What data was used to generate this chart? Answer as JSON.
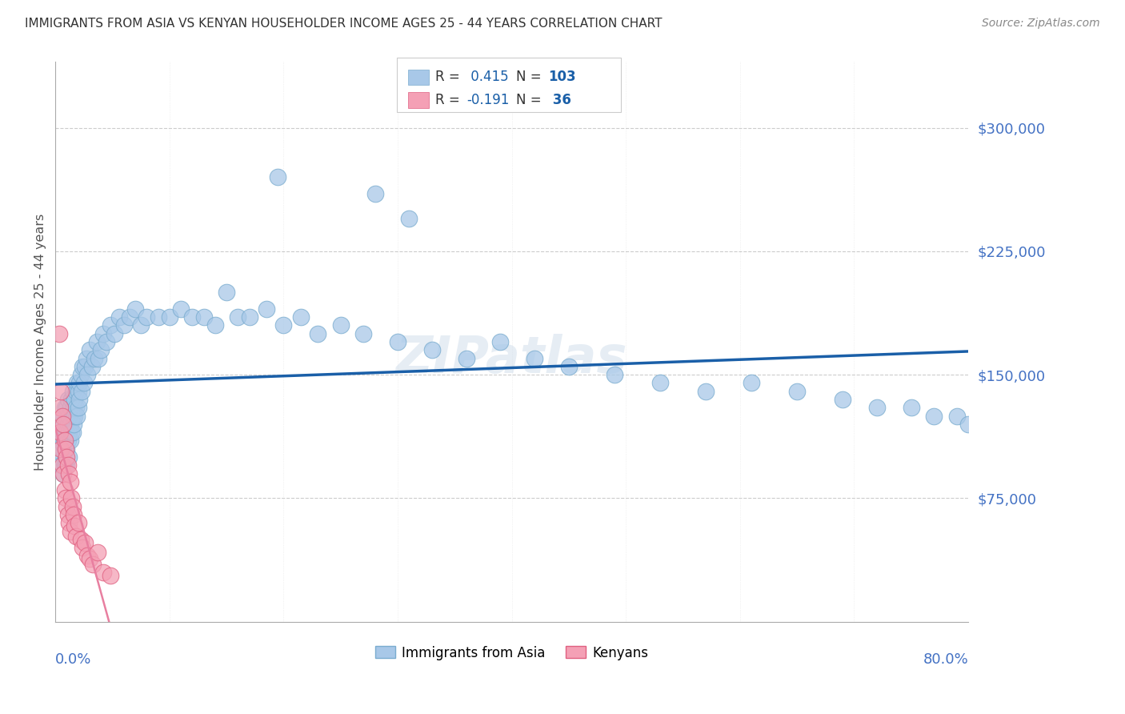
{
  "title": "IMMIGRANTS FROM ASIA VS KENYAN HOUSEHOLDER INCOME AGES 25 - 44 YEARS CORRELATION CHART",
  "source": "Source: ZipAtlas.com",
  "ylabel": "Householder Income Ages 25 - 44 years",
  "watermark": "ZIPatlas",
  "legend1_label": "Immigrants from Asia",
  "legend2_label": "Kenyans",
  "R_asia": 0.415,
  "N_asia": 103,
  "R_kenya": -0.191,
  "N_kenya": 36,
  "xlim": [
    0.0,
    0.8
  ],
  "ylim": [
    0,
    340000
  ],
  "yticks": [
    0,
    75000,
    150000,
    225000,
    300000
  ],
  "xticks": [
    0.0,
    0.1,
    0.2,
    0.3,
    0.4,
    0.5,
    0.6,
    0.7,
    0.8
  ],
  "background_color": "#ffffff",
  "grid_color": "#cccccc",
  "blue_dot_color": "#a8c8e8",
  "blue_dot_edge": "#7aaccf",
  "pink_dot_color": "#f4a0b5",
  "pink_dot_edge": "#e06080",
  "blue_line_color": "#1a5fa8",
  "pink_line_color": "#e87fa0",
  "title_color": "#333333",
  "axis_label_color": "#555555",
  "yaxis_right_color": "#4472c4",
  "xaxis_color": "#4472c4",
  "asia_x": [
    0.003,
    0.004,
    0.005,
    0.005,
    0.006,
    0.006,
    0.007,
    0.007,
    0.007,
    0.008,
    0.008,
    0.008,
    0.009,
    0.009,
    0.009,
    0.01,
    0.01,
    0.01,
    0.01,
    0.011,
    0.011,
    0.011,
    0.012,
    0.012,
    0.012,
    0.013,
    0.013,
    0.013,
    0.014,
    0.014,
    0.015,
    0.015,
    0.015,
    0.016,
    0.016,
    0.017,
    0.017,
    0.018,
    0.018,
    0.019,
    0.019,
    0.02,
    0.02,
    0.021,
    0.021,
    0.022,
    0.023,
    0.024,
    0.025,
    0.026,
    0.027,
    0.028,
    0.03,
    0.032,
    0.034,
    0.036,
    0.038,
    0.04,
    0.042,
    0.045,
    0.048,
    0.052,
    0.056,
    0.06,
    0.065,
    0.07,
    0.075,
    0.08,
    0.09,
    0.1,
    0.11,
    0.12,
    0.13,
    0.14,
    0.15,
    0.16,
    0.17,
    0.185,
    0.2,
    0.215,
    0.23,
    0.25,
    0.27,
    0.3,
    0.33,
    0.36,
    0.39,
    0.42,
    0.45,
    0.49,
    0.53,
    0.57,
    0.61,
    0.65,
    0.69,
    0.72,
    0.75,
    0.77,
    0.79,
    0.8,
    0.195,
    0.28,
    0.31
  ],
  "asia_y": [
    100000,
    110000,
    95000,
    120000,
    105000,
    115000,
    90000,
    125000,
    108000,
    95000,
    115000,
    130000,
    100000,
    120000,
    110000,
    95000,
    115000,
    130000,
    105000,
    120000,
    110000,
    135000,
    100000,
    125000,
    115000,
    110000,
    130000,
    120000,
    115000,
    135000,
    125000,
    115000,
    140000,
    130000,
    120000,
    135000,
    125000,
    140000,
    130000,
    145000,
    125000,
    140000,
    130000,
    145000,
    135000,
    150000,
    140000,
    155000,
    145000,
    155000,
    160000,
    150000,
    165000,
    155000,
    160000,
    170000,
    160000,
    165000,
    175000,
    170000,
    180000,
    175000,
    185000,
    180000,
    185000,
    190000,
    180000,
    185000,
    185000,
    185000,
    190000,
    185000,
    185000,
    180000,
    200000,
    185000,
    185000,
    190000,
    180000,
    185000,
    175000,
    180000,
    175000,
    170000,
    165000,
    160000,
    170000,
    160000,
    155000,
    150000,
    145000,
    140000,
    145000,
    140000,
    135000,
    130000,
    130000,
    125000,
    125000,
    120000,
    270000,
    260000,
    245000
  ],
  "kenya_x": [
    0.003,
    0.004,
    0.004,
    0.005,
    0.005,
    0.006,
    0.006,
    0.007,
    0.007,
    0.008,
    0.008,
    0.009,
    0.009,
    0.01,
    0.01,
    0.011,
    0.011,
    0.012,
    0.012,
    0.013,
    0.013,
    0.014,
    0.015,
    0.016,
    0.017,
    0.018,
    0.02,
    0.022,
    0.024,
    0.026,
    0.028,
    0.03,
    0.033,
    0.037,
    0.042,
    0.048
  ],
  "kenya_y": [
    175000,
    130000,
    115000,
    140000,
    105000,
    125000,
    95000,
    120000,
    90000,
    110000,
    80000,
    105000,
    75000,
    100000,
    70000,
    95000,
    65000,
    90000,
    60000,
    85000,
    55000,
    75000,
    70000,
    65000,
    58000,
    52000,
    60000,
    50000,
    45000,
    48000,
    40000,
    38000,
    35000,
    42000,
    30000,
    28000
  ]
}
